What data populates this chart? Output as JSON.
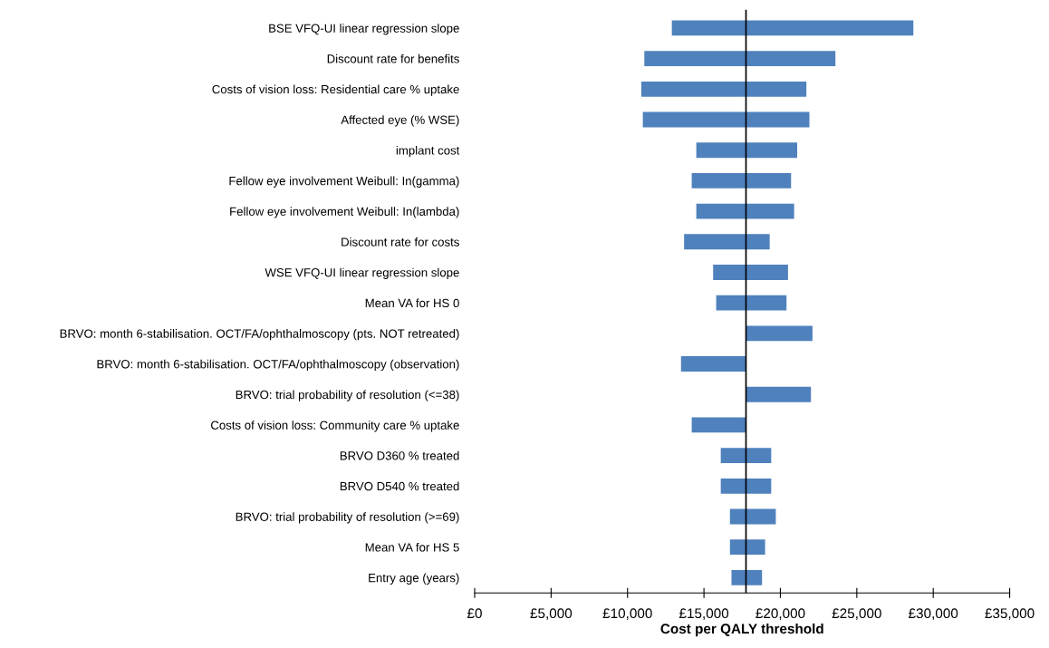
{
  "chart_data": {
    "type": "bar",
    "orientation": "horizontal",
    "xlabel": "Cost per QALY threshold",
    "categories": [
      "BSE VFQ-UI linear regression slope",
      "Discount rate for benefits",
      "Costs of vision loss: Residential care % uptake",
      "Affected eye (% WSE)",
      "implant cost",
      "Fellow eye involvement Weibull: In(gamma)",
      "Fellow eye involvement Weibull: In(lambda)",
      "Discount rate for costs",
      "WSE VFQ-UI linear regression slope",
      "Mean VA for HS 0",
      "BRVO: month 6-stabilisation. OCT/FA/ophthalmoscopy (pts. NOT retreated)",
      "BRVO: month 6-stabilisation. OCT/FA/ophthalmoscopy (observation)",
      "BRVO: trial probability of resolution (<=38)",
      "Costs of vision loss: Community care % uptake",
      "BRVO D360 % treated",
      "BRVO D540 % treated",
      "BRVO: trial probability of resolution (>=69)",
      "Mean VA for HS 5",
      "Entry age (years)"
    ],
    "base": [
      12900,
      11100,
      10900,
      11000,
      14500,
      14200,
      14500,
      13700,
      15600,
      15800,
      17750,
      13500,
      17750,
      14200,
      16100,
      16100,
      16700,
      16700,
      16800
    ],
    "values": [
      15800,
      12500,
      10800,
      10900,
      6600,
      6500,
      6400,
      5600,
      4900,
      4600,
      4350,
      4250,
      4250,
      3550,
      3300,
      3300,
      3000,
      2300,
      2000
    ],
    "color": "#4f81bd",
    "xlim": [
      0,
      35000
    ],
    "xticks": [
      {
        "value": 0,
        "label": "£0"
      },
      {
        "value": 5000,
        "label": "£5,000"
      },
      {
        "value": 10000,
        "label": "£10,000"
      },
      {
        "value": 15000,
        "label": "£15,000"
      },
      {
        "value": 20000,
        "label": "£20,000"
      },
      {
        "value": 25000,
        "label": "£25,000"
      },
      {
        "value": 30000,
        "label": "£30,000"
      },
      {
        "value": 35000,
        "label": "£35,000"
      }
    ],
    "ref_lines": [
      {
        "axis": "x",
        "value": 17750,
        "color": "#000000"
      }
    ],
    "grid": false,
    "legend": false
  }
}
